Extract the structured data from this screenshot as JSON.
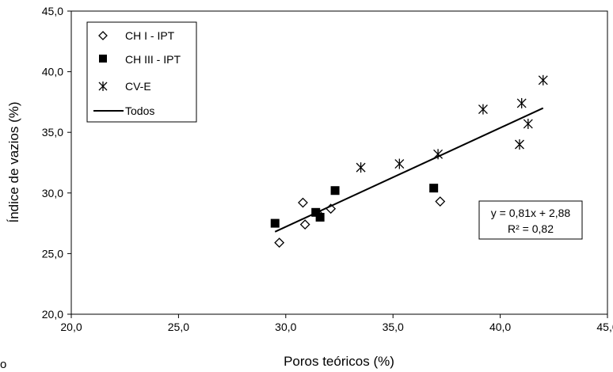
{
  "chart_data": {
    "type": "scatter",
    "title": "",
    "xlabel": "Poros teóricos (%)",
    "ylabel": "Índice de vazios (%)",
    "xlim": [
      20.0,
      45.0
    ],
    "ylim": [
      20.0,
      45.0
    ],
    "x_ticks": [
      "20,0",
      "25,0",
      "30,0",
      "35,0",
      "40,0",
      "45,0"
    ],
    "y_ticks": [
      "20,0",
      "25,0",
      "30,0",
      "35,0",
      "40,0",
      "45,0"
    ],
    "grid": false,
    "legend_position": "top-left",
    "series": [
      {
        "name": "CH I - IPT",
        "marker": "open-diamond",
        "color": "#000000",
        "points": [
          {
            "x": 29.7,
            "y": 25.9
          },
          {
            "x": 30.8,
            "y": 29.2
          },
          {
            "x": 30.9,
            "y": 27.4
          },
          {
            "x": 31.5,
            "y": 28.3
          },
          {
            "x": 32.1,
            "y": 28.7
          },
          {
            "x": 37.2,
            "y": 29.3
          }
        ]
      },
      {
        "name": "CH III - IPT",
        "marker": "filled-square",
        "color": "#000000",
        "points": [
          {
            "x": 29.5,
            "y": 27.5
          },
          {
            "x": 31.4,
            "y": 28.4
          },
          {
            "x": 31.6,
            "y": 28.0
          },
          {
            "x": 32.3,
            "y": 30.2
          },
          {
            "x": 36.9,
            "y": 30.4
          }
        ]
      },
      {
        "name": "CV-E",
        "marker": "asterisk",
        "color": "#000000",
        "points": [
          {
            "x": 33.5,
            "y": 32.1
          },
          {
            "x": 35.3,
            "y": 32.4
          },
          {
            "x": 37.1,
            "y": 33.2
          },
          {
            "x": 39.2,
            "y": 36.9
          },
          {
            "x": 40.9,
            "y": 34.0
          },
          {
            "x": 41.0,
            "y": 37.4
          },
          {
            "x": 41.3,
            "y": 35.7
          },
          {
            "x": 42.0,
            "y": 39.3
          }
        ]
      },
      {
        "name": "Todos",
        "type": "line",
        "color": "#000000",
        "points": [
          {
            "x": 29.5,
            "y": 26.8
          },
          {
            "x": 42.0,
            "y": 37.0
          }
        ]
      }
    ],
    "annotations": {
      "equation": "y = 0,81x + 2,88",
      "r_squared": "R² = 0,82"
    }
  },
  "stray_text": "o"
}
